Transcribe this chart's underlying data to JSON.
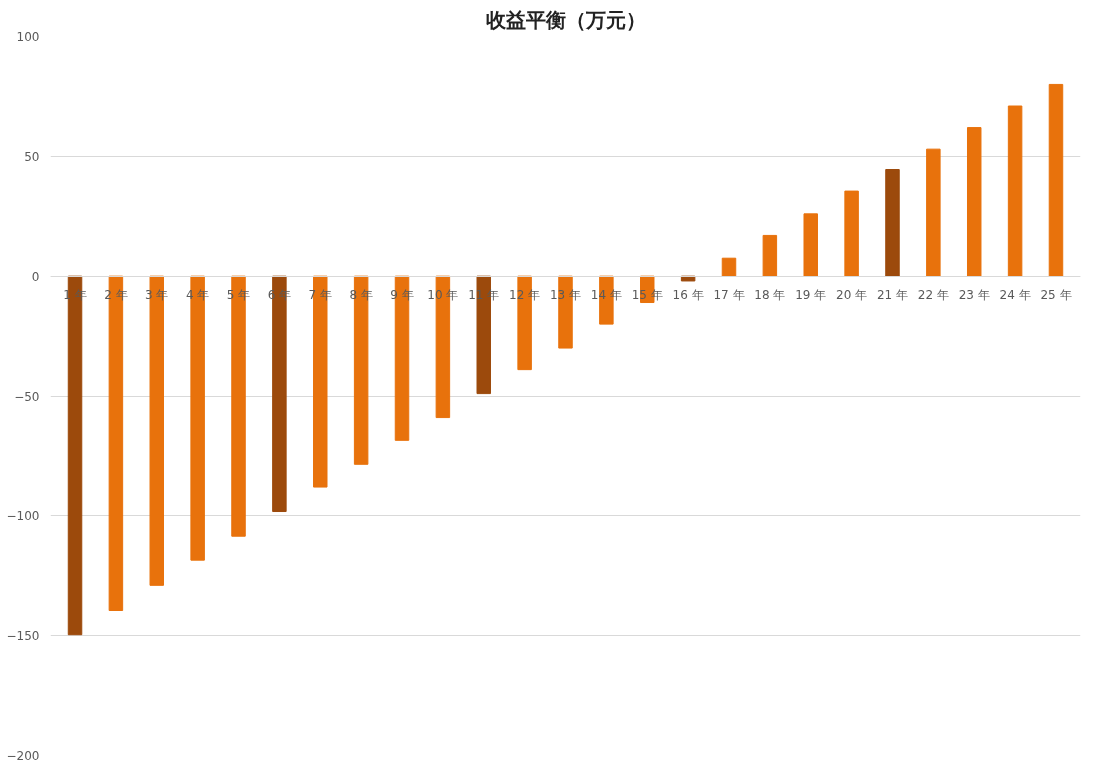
{
  "chart_data": {
    "type": "bar",
    "title": "收益平衡（万元）",
    "categories": [
      "1 年",
      "2 年",
      "3 年",
      "4 年",
      "5 年",
      "6 年",
      "7 年",
      "8 年",
      "9 年",
      "10 年",
      "11 年",
      "12 年",
      "13 年",
      "14 年",
      "15 年",
      "16 年",
      "17 年",
      "18 年",
      "19 年",
      "20 年",
      "21 年",
      "22 年",
      "23 年",
      "24 年",
      "25 年"
    ],
    "values": [
      -149.6,
      -139.5,
      -129,
      -118.5,
      -108.5,
      -98.2,
      -88,
      -78.5,
      -68.5,
      -59,
      -49,
      -39,
      -30,
      -20,
      -11,
      -2,
      7.5,
      17,
      26,
      35.5,
      44.5,
      53,
      62,
      71,
      80
    ],
    "colors": [
      "#9c4a0c",
      "#e8720c",
      "#e8720c",
      "#e8720c",
      "#e8720c",
      "#9c4a0c",
      "#e8720c",
      "#e8720c",
      "#e8720c",
      "#e8720c",
      "#9c4a0c",
      "#e8720c",
      "#e8720c",
      "#e8720c",
      "#e8720c",
      "#9c4a0c",
      "#e8720c",
      "#e8720c",
      "#e8720c",
      "#e8720c",
      "#9c4a0c",
      "#e8720c",
      "#e8720c",
      "#e8720c",
      "#e8720c"
    ],
    "ylim": [
      -200,
      100
    ],
    "yticks": [
      -200,
      -150,
      -100,
      -50,
      0,
      50,
      100
    ],
    "grid": "y"
  }
}
